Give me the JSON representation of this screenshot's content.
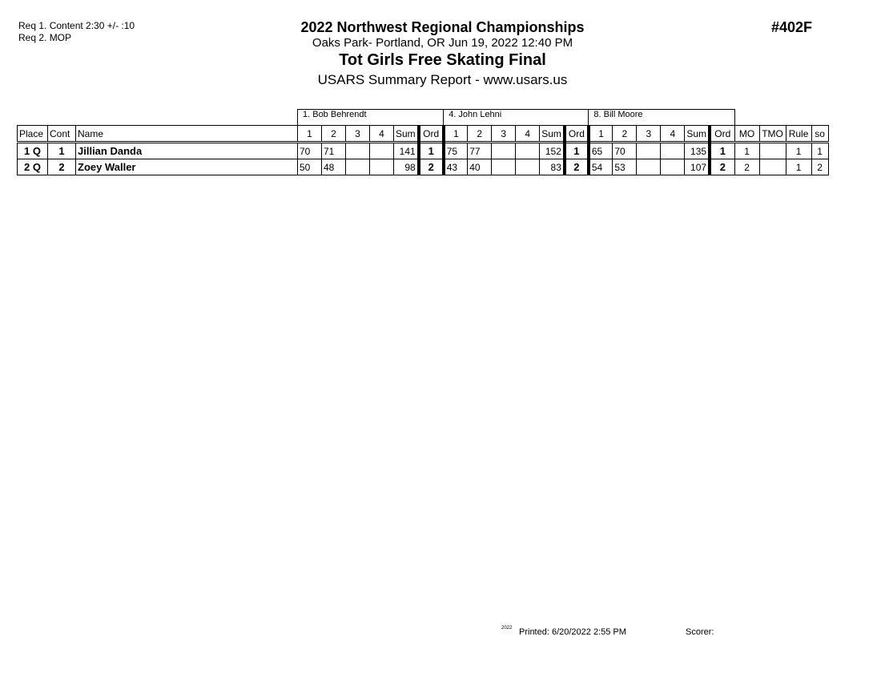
{
  "requirements": [
    "Req 1.  Content  2:30 +/- :10",
    "Req 2.  MOP"
  ],
  "header": {
    "title": "2022 Northwest Regional Championships",
    "location": "Oaks Park- Portland, OR  Jun 19, 2022  12:40 PM",
    "event": "Tot Girls Free Skating Final",
    "subtitle": "USARS Summary Report - www.usars.us",
    "event_number": "#402F"
  },
  "table": {
    "judges": [
      "1.  Bob Behrendt",
      "4.  John Lehni",
      "8.  Bill Moore"
    ],
    "columns": {
      "place": "Place",
      "cont": "Cont",
      "name": "Name",
      "marks": [
        "1",
        "2",
        "3",
        "4",
        "Sum",
        "Ord"
      ],
      "tail": [
        "MO",
        "TMO",
        "Rule",
        "so"
      ]
    },
    "rows": [
      {
        "place": "1 Q",
        "cont": "1",
        "name": "Jillian Danda",
        "judges": [
          [
            "70",
            "71",
            "",
            "",
            "141",
            "1"
          ],
          [
            "75",
            "77",
            "",
            "",
            "152",
            "1"
          ],
          [
            "65",
            "70",
            "",
            "",
            "135",
            "1"
          ]
        ],
        "mo": "1",
        "tmo": "",
        "rule": "1",
        "so": "1"
      },
      {
        "place": "2 Q",
        "cont": "2",
        "name": "Zoey Waller",
        "judges": [
          [
            "50",
            "48",
            "",
            "",
            "98",
            "2"
          ],
          [
            "43",
            "40",
            "",
            "",
            "83",
            "2"
          ],
          [
            "54",
            "53",
            "",
            "",
            "107",
            "2"
          ]
        ],
        "mo": "2",
        "tmo": "",
        "rule": "1",
        "so": "2"
      }
    ]
  },
  "footer": {
    "version": "2022",
    "printed": "Printed:  6/20/2022  2:55 PM",
    "scorer": "Scorer:"
  }
}
